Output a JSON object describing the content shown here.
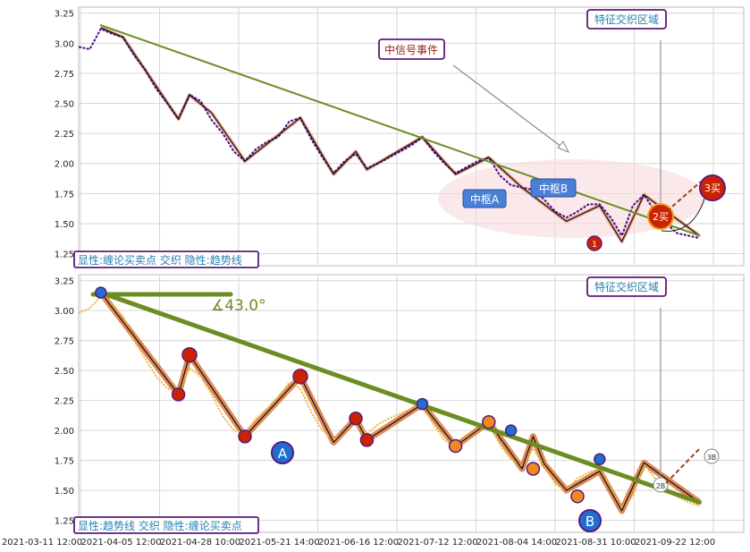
{
  "chart_data": [
    {
      "type": "line",
      "panel": "top",
      "ylim": [
        1.15,
        3.3
      ],
      "yticks": [
        "3.25",
        "3.00",
        "2.75",
        "2.50",
        "2.25",
        "2.00",
        "1.75",
        "1.50",
        "1.25"
      ],
      "series": [
        {
          "values": [
            [
              0,
              2.97
            ],
            [
              1,
              2.95
            ],
            [
              2,
              3.12
            ],
            [
              3,
              3.08
            ],
            [
              4,
              3.05
            ],
            [
              5,
              2.9
            ],
            [
              6,
              2.78
            ],
            [
              7,
              2.62
            ],
            [
              8,
              2.5
            ],
            [
              9,
              2.37
            ],
            [
              10,
              2.57
            ],
            [
              11,
              2.52
            ],
            [
              12,
              2.36
            ],
            [
              13,
              2.25
            ],
            [
              14,
              2.1
            ],
            [
              15,
              2.02
            ],
            [
              16,
              2.12
            ],
            [
              17,
              2.18
            ],
            [
              18,
              2.22
            ],
            [
              19,
              2.35
            ],
            [
              20,
              2.38
            ],
            [
              21,
              2.2
            ],
            [
              22,
              2.05
            ],
            [
              23,
              1.92
            ],
            [
              24,
              2.02
            ],
            [
              25,
              2.08
            ],
            [
              26,
              1.96
            ],
            [
              27,
              2.0
            ],
            [
              28,
              2.05
            ],
            [
              29,
              2.1
            ],
            [
              30,
              2.15
            ],
            [
              31,
              2.22
            ],
            [
              32,
              2.1
            ],
            [
              33,
              2.0
            ],
            [
              34,
              1.92
            ],
            [
              35,
              1.97
            ],
            [
              36,
              2.02
            ],
            [
              37,
              2.05
            ],
            [
              38,
              1.9
            ],
            [
              39,
              1.82
            ],
            [
              40,
              1.8
            ],
            [
              41,
              1.78
            ],
            [
              42,
              1.7
            ],
            [
              43,
              1.6
            ],
            [
              44,
              1.55
            ],
            [
              45,
              1.6
            ],
            [
              46,
              1.66
            ],
            [
              47,
              1.66
            ],
            [
              48,
              1.55
            ],
            [
              49,
              1.4
            ],
            [
              50,
              1.65
            ],
            [
              51,
              1.74
            ],
            [
              52,
              1.6
            ],
            [
              53,
              1.5
            ],
            [
              54,
              1.42
            ],
            [
              55,
              1.4
            ],
            [
              56,
              1.38
            ]
          ]
        },
        {
          "values": [
            [
              2,
              3.13
            ],
            [
              4,
              3.05
            ],
            [
              9,
              2.37
            ],
            [
              10,
              2.57
            ],
            [
              12,
              2.42
            ],
            [
              15,
              2.02
            ],
            [
              20,
              2.38
            ],
            [
              23,
              1.91
            ],
            [
              25,
              2.1
            ],
            [
              26,
              1.95
            ],
            [
              31,
              2.22
            ],
            [
              34,
              1.91
            ],
            [
              37,
              2.05
            ],
            [
              40,
              1.8
            ],
            [
              44,
              1.52
            ],
            [
              47,
              1.65
            ],
            [
              49,
              1.35
            ],
            [
              51,
              1.74
            ],
            [
              56,
              1.4
            ]
          ]
        }
      ],
      "trendline": [
        [
          2,
          3.15
        ],
        [
          56,
          1.4
        ]
      ],
      "annotations": {
        "feature_zone": "特征交织区域",
        "signal_event": "中信号事件",
        "pivot_a": "中枢A",
        "pivot_b": "中枢B",
        "buy1": "1",
        "buy2": "2买",
        "buy3": "3买",
        "legend": "显性:缠论买卖点 交织 隐性:趋势线"
      }
    },
    {
      "type": "line",
      "panel": "bottom",
      "ylim": [
        1.15,
        3.3
      ],
      "yticks": [
        "3.25",
        "3.00",
        "2.75",
        "2.50",
        "2.25",
        "2.00",
        "1.75",
        "1.50",
        "1.25"
      ],
      "series": [
        {
          "values": [
            [
              0,
              2.98
            ],
            [
              1,
              3.02
            ],
            [
              2,
              3.12
            ],
            [
              3,
              3.05
            ],
            [
              4,
              2.95
            ],
            [
              5,
              2.75
            ],
            [
              6,
              2.6
            ],
            [
              7,
              2.45
            ],
            [
              8,
              2.35
            ],
            [
              9,
              2.32
            ],
            [
              10,
              2.52
            ],
            [
              11,
              2.45
            ],
            [
              12,
              2.3
            ],
            [
              13,
              2.12
            ],
            [
              14,
              2.0
            ],
            [
              15,
              1.98
            ],
            [
              16,
              2.1
            ],
            [
              17,
              2.18
            ],
            [
              18,
              2.28
            ],
            [
              19,
              2.4
            ],
            [
              20,
              2.35
            ],
            [
              21,
              2.15
            ],
            [
              22,
              2.0
            ],
            [
              23,
              1.92
            ],
            [
              24,
              2.0
            ],
            [
              25,
              2.1
            ],
            [
              26,
              1.97
            ],
            [
              27,
              2.05
            ],
            [
              28,
              2.1
            ],
            [
              29,
              2.14
            ],
            [
              30,
              2.18
            ],
            [
              31,
              2.22
            ],
            [
              32,
              2.05
            ],
            [
              33,
              1.92
            ],
            [
              34,
              1.85
            ],
            [
              35,
              1.95
            ],
            [
              36,
              2.0
            ],
            [
              37,
              2.07
            ],
            [
              38,
              1.88
            ],
            [
              39,
              1.76
            ],
            [
              40,
              1.7
            ],
            [
              41,
              1.85
            ],
            [
              42,
              1.7
            ],
            [
              43,
              1.55
            ],
            [
              44,
              1.5
            ],
            [
              45,
              1.6
            ],
            [
              46,
              1.65
            ],
            [
              47,
              1.68
            ],
            [
              48,
              1.52
            ],
            [
              49,
              1.35
            ],
            [
              50,
              1.45
            ],
            [
              51,
              1.72
            ],
            [
              52,
              1.6
            ],
            [
              53,
              1.52
            ],
            [
              54,
              1.45
            ],
            [
              55,
              1.4
            ],
            [
              56,
              1.37
            ]
          ]
        },
        {
          "values": [
            [
              2,
              3.15
            ],
            [
              9,
              2.3
            ],
            [
              10,
              2.63
            ],
            [
              15,
              1.95
            ],
            [
              20,
              2.45
            ],
            [
              23,
              1.9
            ],
            [
              25,
              2.1
            ],
            [
              26,
              1.92
            ],
            [
              31,
              2.22
            ],
            [
              34,
              1.87
            ],
            [
              37,
              2.07
            ],
            [
              40,
              1.68
            ],
            [
              41,
              1.95
            ],
            [
              42,
              1.72
            ],
            [
              44,
              1.5
            ],
            [
              47,
              1.66
            ],
            [
              49,
              1.33
            ],
            [
              51,
              1.73
            ],
            [
              56,
              1.4
            ]
          ]
        }
      ],
      "trendline": [
        [
          2,
          3.15
        ],
        [
          56,
          1.4
        ]
      ],
      "annotations": {
        "feature_zone": "特征交织区域",
        "angle": "∡43.0°",
        "pivot_a": "A",
        "pivot_b": "B",
        "buy2": "2B",
        "buy3": "3B",
        "legend": "显性:趋势线 交织 隐性:缠论买卖点"
      },
      "xticks": [
        "2021-03-11 12:00",
        "2021-04-05 12:00",
        "2021-04-28 10:00",
        "2021-05-21 14:00",
        "2021-06-16 12:00",
        "2021-07-12 12:00",
        "2021-08-04 14:00",
        "2021-08-31 10:00",
        "2021-09-22 12:00"
      ]
    }
  ],
  "colors": {
    "price_top": "#4b0a8c",
    "price_bottom": "#f0b43c",
    "trend": "#6b8e23",
    "stroke_dark": "#111111",
    "stroke_halo_top": "#e8a080",
    "stroke_halo_bottom": "#d9773c",
    "box_border": "#5b1a7a",
    "box_text": "#2a7fb0",
    "red_marker": "#cc2200",
    "orange_marker": "#f08a1e",
    "blue_marker": "#1e6fd0",
    "pivot_fill": "#4a7fd6"
  }
}
